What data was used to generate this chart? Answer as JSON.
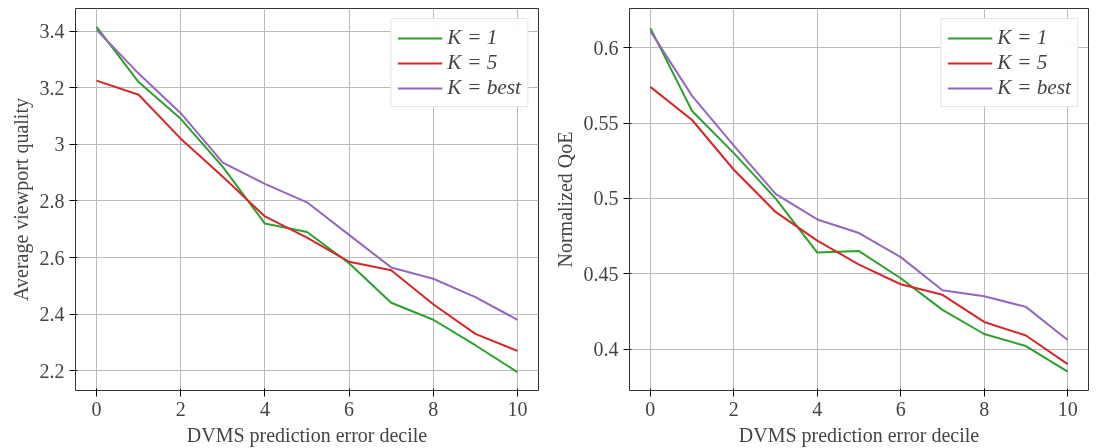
{
  "chart_data": [
    {
      "type": "line",
      "xlabel": "DVMS prediction error decile",
      "ylabel": "Average viewport quality",
      "x": [
        0,
        1,
        2,
        3,
        4,
        5,
        6,
        7,
        8,
        9,
        10
      ],
      "series": [
        {
          "name": "K = 1",
          "color": "#2ca02c",
          "values": [
            3.415,
            3.22,
            3.09,
            2.92,
            2.72,
            2.69,
            2.58,
            2.44,
            2.38,
            2.29,
            2.195
          ]
        },
        {
          "name": "K = 5",
          "color": "#d62728",
          "values": [
            3.225,
            3.175,
            3.02,
            2.885,
            2.745,
            2.67,
            2.585,
            2.555,
            2.435,
            2.33,
            2.27
          ]
        },
        {
          "name": "K = best",
          "color": "#9467bd",
          "values": [
            3.405,
            3.25,
            3.11,
            2.935,
            2.86,
            2.795,
            2.68,
            2.565,
            2.525,
            2.46,
            2.38
          ]
        }
      ],
      "xlim": [
        -0.5,
        10.5
      ],
      "ylim": [
        2.13,
        3.48
      ],
      "xticks": [
        0,
        2,
        4,
        6,
        8,
        10
      ],
      "yticks": [
        2.2,
        2.4,
        2.6,
        2.8,
        3,
        3.2,
        3.4
      ],
      "grid": true,
      "legend": "top right"
    },
    {
      "type": "line",
      "xlabel": "DVMS prediction error decile",
      "ylabel": "Normalized QoE",
      "x": [
        0,
        1,
        2,
        3,
        4,
        5,
        6,
        7,
        8,
        9,
        10
      ],
      "series": [
        {
          "name": "K = 1",
          "color": "#2ca02c",
          "values": [
            0.613,
            0.558,
            0.53,
            0.5,
            0.464,
            0.465,
            0.447,
            0.426,
            0.41,
            0.402,
            0.385
          ]
        },
        {
          "name": "K = 5",
          "color": "#d62728",
          "values": [
            0.574,
            0.552,
            0.519,
            0.491,
            0.472,
            0.456,
            0.443,
            0.436,
            0.418,
            0.409,
            0.39
          ]
        },
        {
          "name": "K = best",
          "color": "#9467bd",
          "values": [
            0.611,
            0.568,
            0.535,
            0.503,
            0.486,
            0.477,
            0.461,
            0.439,
            0.435,
            0.428,
            0.406
          ]
        }
      ],
      "xlim": [
        -0.5,
        10.5
      ],
      "ylim": [
        0.3725,
        0.626
      ],
      "xticks": [
        0,
        2,
        4,
        6,
        8,
        10
      ],
      "yticks": [
        0.4,
        0.45,
        0.5,
        0.55,
        0.6
      ],
      "grid": true,
      "legend": "top right"
    }
  ]
}
